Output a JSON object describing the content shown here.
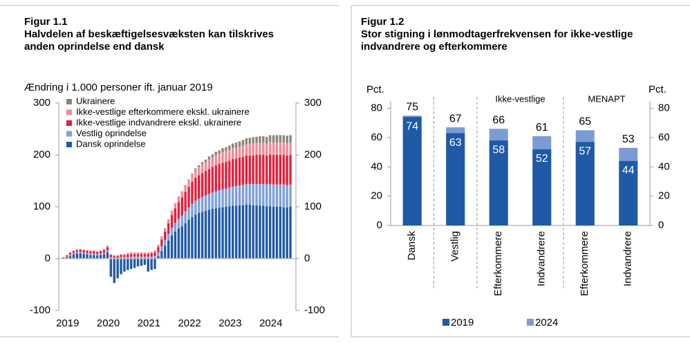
{
  "chart_data": [
    {
      "type": "bar",
      "stacked": true,
      "title": "Figur 1.1",
      "subtitle": "Halvdelen af beskæftigelsesvæksten kan tilskrives anden oprindelse end dansk",
      "ylabel": "Ændring i 1.000 personer ift. januar 2019",
      "categories": [
        "2019",
        null,
        null,
        null,
        null,
        null,
        null,
        null,
        null,
        null,
        null,
        null,
        "2020",
        null,
        null,
        null,
        null,
        null,
        null,
        null,
        null,
        null,
        null,
        null,
        "2021",
        null,
        null,
        null,
        null,
        null,
        null,
        null,
        null,
        null,
        null,
        null,
        "2022",
        null,
        null,
        null,
        null,
        null,
        null,
        null,
        null,
        null,
        null,
        null,
        "2023",
        null,
        null,
        null,
        null,
        null,
        null,
        null,
        null,
        null,
        null,
        null,
        "2024",
        null,
        null,
        null,
        null,
        null,
        null,
        null
      ],
      "series": [
        {
          "name": "Dansk oprindelse",
          "color": "#1f5aa6",
          "values": [
            0,
            2,
            5,
            8,
            10,
            10,
            9,
            8,
            7,
            7,
            6,
            7,
            8,
            12,
            -35,
            -47,
            -38,
            -30,
            -25,
            -22,
            -20,
            -18,
            -15,
            -14,
            -12,
            -25,
            -22,
            -20,
            5,
            15,
            25,
            35,
            45,
            52,
            58,
            62,
            68,
            75,
            80,
            85,
            88,
            90,
            92,
            94,
            96,
            97,
            98,
            99,
            100,
            101,
            102,
            102,
            103,
            103,
            104,
            104,
            103,
            103,
            102,
            102,
            101,
            101,
            100,
            100,
            100,
            99,
            99,
            100
          ]
        },
        {
          "name": "Vestlig oprindelse",
          "color": "#7f9fd9",
          "values": [
            1,
            2,
            3,
            3,
            3,
            3,
            3,
            3,
            3,
            3,
            3,
            3,
            3,
            4,
            3,
            2,
            2,
            3,
            3,
            3,
            4,
            4,
            4,
            4,
            4,
            4,
            4,
            5,
            7,
            9,
            11,
            13,
            15,
            17,
            19,
            21,
            23,
            24,
            26,
            27,
            28,
            29,
            30,
            31,
            32,
            33,
            34,
            35,
            35,
            36,
            37,
            38,
            38,
            39,
            40,
            40,
            41,
            41,
            42,
            42,
            42,
            43,
            43,
            43,
            43,
            44,
            43,
            43
          ]
        },
        {
          "name": "Ikke-vestlige indvandrere ekskl. ukrainere",
          "color": "#e2203d",
          "values": [
            1,
            2,
            3,
            3,
            3,
            4,
            4,
            4,
            4,
            4,
            4,
            4,
            5,
            6,
            4,
            3,
            3,
            4,
            4,
            5,
            5,
            5,
            5,
            5,
            5,
            5,
            6,
            7,
            10,
            13,
            16,
            20,
            24,
            28,
            32,
            35,
            38,
            40,
            42,
            44,
            45,
            46,
            47,
            48,
            49,
            50,
            51,
            51,
            52,
            52,
            53,
            53,
            54,
            54,
            55,
            55,
            55,
            56,
            56,
            56,
            56,
            57,
            57,
            57,
            57,
            57,
            57,
            57
          ]
        },
        {
          "name": "Ikke-vestlige efterkommere ekskl. ukrainere",
          "color": "#f08b97",
          "values": [
            1,
            1,
            2,
            2,
            2,
            2,
            2,
            2,
            2,
            2,
            2,
            2,
            3,
            3,
            2,
            2,
            2,
            2,
            2,
            3,
            3,
            3,
            3,
            3,
            3,
            3,
            3,
            4,
            5,
            6,
            7,
            8,
            9,
            10,
            11,
            12,
            13,
            14,
            15,
            16,
            16,
            17,
            17,
            18,
            18,
            19,
            19,
            20,
            20,
            20,
            21,
            21,
            21,
            22,
            22,
            22,
            23,
            23,
            23,
            23,
            23,
            24,
            24,
            24,
            24,
            24,
            24,
            24
          ]
        },
        {
          "name": "Ukrainere",
          "color": "#8c8479",
          "values": [
            0,
            0,
            0,
            0,
            0,
            0,
            0,
            0,
            0,
            0,
            0,
            0,
            0,
            0,
            0,
            0,
            0,
            0,
            0,
            0,
            0,
            0,
            0,
            0,
            0,
            0,
            0,
            0,
            0,
            0,
            0,
            0,
            0,
            0,
            0,
            0,
            0,
            0,
            1,
            2,
            3,
            4,
            5,
            6,
            6,
            7,
            7,
            8,
            8,
            9,
            9,
            10,
            10,
            11,
            11,
            12,
            12,
            12,
            13,
            13,
            13,
            13,
            14,
            14,
            14,
            14,
            14,
            14
          ]
        }
      ],
      "ylim": [
        -100,
        300
      ],
      "yticks": [
        -100,
        0,
        100,
        200,
        300
      ],
      "y2lim": [
        -100,
        300
      ],
      "y2ticks": [
        -100,
        0,
        100,
        200,
        300
      ],
      "grid": false,
      "legend": "upper left"
    },
    {
      "type": "bar",
      "overlay": true,
      "title": "Figur 1.2",
      "subtitle": "Stor stigning i lønmodtagerfrekvensen for ikke-vestlige indvandrere og efterkommere",
      "ylabel": "Pct.",
      "annotations": [
        "Ikke-vestlige",
        "MENAPT"
      ],
      "categories": [
        "Dansk",
        "Vestlig",
        "Efterkommere",
        "Indvandrere",
        "Efterkommere",
        "Indvandrere"
      ],
      "series": [
        {
          "name": "2024",
          "color": "#7b9bd6",
          "values": [
            75,
            67,
            66,
            61,
            65,
            53
          ]
        },
        {
          "name": "2019",
          "color": "#1f5aa6",
          "values": [
            74,
            63,
            58,
            52,
            57,
            44
          ]
        }
      ],
      "ylim": [
        0,
        85
      ],
      "yticks": [
        0,
        20,
        40,
        60,
        80
      ],
      "y2lim": [
        0,
        85
      ],
      "y2ticks": [
        0,
        20,
        40,
        60,
        80
      ],
      "grid": false,
      "legend": "bottom"
    }
  ]
}
